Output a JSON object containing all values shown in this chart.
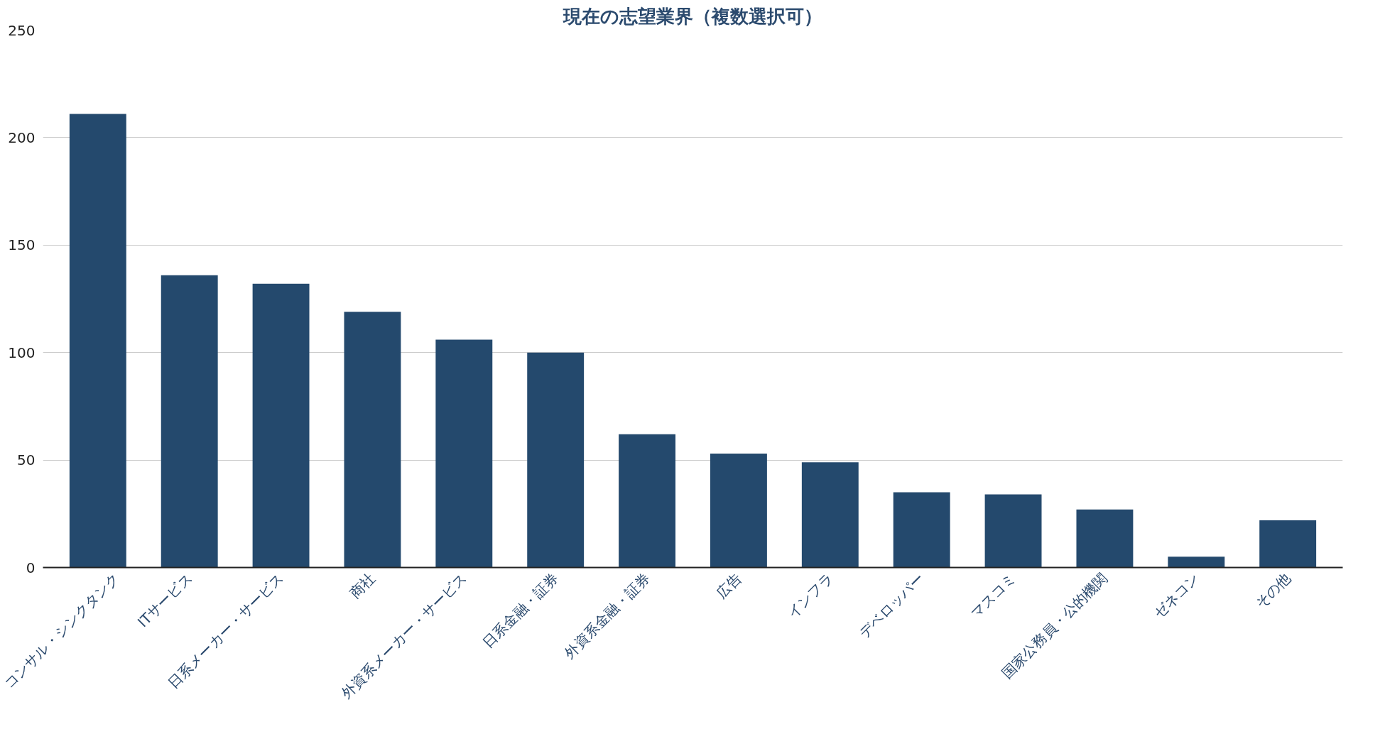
{
  "chart_data": {
    "type": "bar",
    "title": "現在の志望業界（複数選択可）",
    "categories": [
      "コンサル・シンクタンク",
      "ITサービス",
      "日系メーカー・サービス",
      "商社",
      "外資系メーカー・サービス",
      "日系金融・証券",
      "外資系金融・証券",
      "広告",
      "インフラ",
      "デベロッパー",
      "マスコミ",
      "国家公務員・公的機関",
      "ゼネコン",
      "その他"
    ],
    "values": [
      211,
      136,
      132,
      119,
      106,
      100,
      62,
      53,
      49,
      35,
      34,
      27,
      5,
      22
    ],
    "color": "#24496d",
    "ylim": [
      0,
      250
    ],
    "yticks": [
      0,
      50,
      100,
      150,
      200,
      250
    ],
    "grid": "y"
  }
}
